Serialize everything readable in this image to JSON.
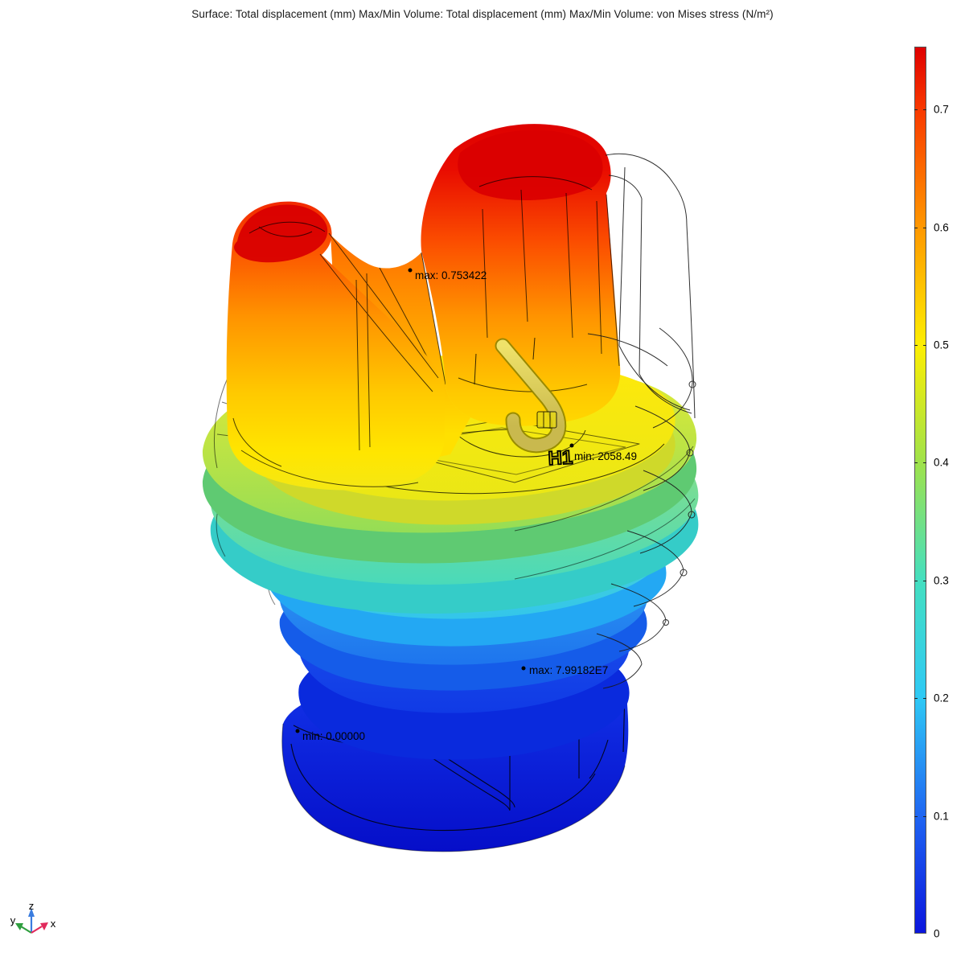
{
  "title": "Surface: Total displacement (mm)  Max/Min Volume: Total displacement (mm)  Max/Min Volume: von Mises stress (N/m²)",
  "colorbar": {
    "max_value": 0.753422,
    "min_value": 0,
    "ticks": [
      {
        "value": 0.7,
        "label": "0.7"
      },
      {
        "value": 0.6,
        "label": "0.6"
      },
      {
        "value": 0.5,
        "label": "0.5"
      },
      {
        "value": 0.4,
        "label": "0.4"
      },
      {
        "value": 0.3,
        "label": "0.3"
      },
      {
        "value": 0.2,
        "label": "0.2"
      },
      {
        "value": 0.1,
        "label": "0.1"
      },
      {
        "value": 0.0,
        "label": "0"
      }
    ],
    "stops": [
      {
        "value": 0.0,
        "color": "#0b16dd"
      },
      {
        "value": 0.1,
        "color": "#1f66f2"
      },
      {
        "value": 0.2,
        "color": "#2fc9f5"
      },
      {
        "value": 0.3,
        "color": "#44dfc0"
      },
      {
        "value": 0.4,
        "color": "#9fe24b"
      },
      {
        "value": 0.5,
        "color": "#fdee02"
      },
      {
        "value": 0.6,
        "color": "#ff9800"
      },
      {
        "value": 0.7,
        "color": "#f93a00"
      },
      {
        "value": 0.753422,
        "color": "#df0000"
      }
    ]
  },
  "annotations": {
    "disp_max": "max: 0.753422",
    "stress_min": "min: 2058.49",
    "stress_max": "max: 7.99182E7",
    "disp_min": "min: 0.00000"
  },
  "model": {
    "embossed_label": "H1"
  },
  "axis_triad": {
    "x_label": "x",
    "y_label": "y",
    "z_label": "z",
    "x_color": "#e12a5c",
    "y_color": "#2f9e3f",
    "z_color": "#3a7cdf"
  },
  "chart_data": {
    "type": "heatmap",
    "title": "Surface: Total displacement (mm)  Max/Min Volume: Total displacement (mm)  Max/Min Volume: von Mises stress (N/m²)",
    "colorbar": {
      "orientation": "vertical",
      "position": "right",
      "range": [
        0,
        0.753422
      ],
      "tick_labels": [
        "0.7",
        "0.6",
        "0.5",
        "0.4",
        "0.3",
        "0.2",
        "0.1",
        "0"
      ],
      "colormap": "rainbow (blue-cyan-green-yellow-orange-red)"
    },
    "annotations": [
      {
        "text": "max: 0.753422",
        "kind": "max",
        "value": 0.753422
      },
      {
        "text": "min: 2058.49",
        "kind": "min",
        "value": 2058.49
      },
      {
        "text": "max: 7.99182E7",
        "kind": "max",
        "value": 79918200
      },
      {
        "text": "min: 0.00000",
        "kind": "min",
        "value": 0.0
      }
    ],
    "embossed_text": "H1",
    "axis_triad_labels": [
      "x",
      "y",
      "z"
    ]
  }
}
